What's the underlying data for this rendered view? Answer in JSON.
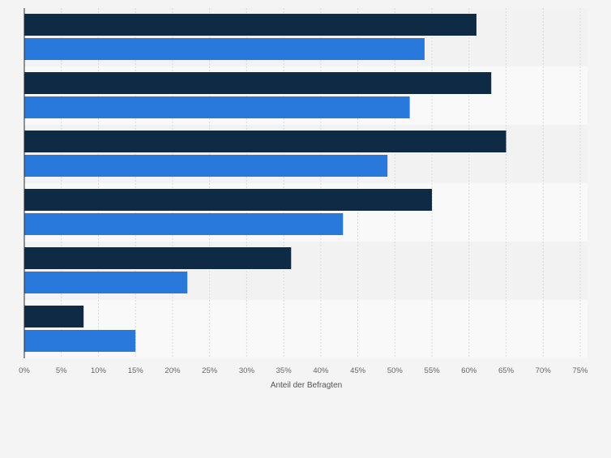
{
  "chart_data": {
    "type": "bar",
    "orientation": "horizontal",
    "categories": [
      "",
      "",
      "",
      "",
      "",
      ""
    ],
    "series": [
      {
        "values": [
          61,
          63,
          65,
          55,
          36,
          8
        ]
      },
      {
        "values": [
          54,
          52,
          49,
          43,
          22,
          15
        ]
      }
    ],
    "xlabel": "Anteil der Befragten",
    "ylabel": "",
    "xlim": [
      0,
      75
    ],
    "x_ticks": [
      "0%",
      "5%",
      "10%",
      "15%",
      "20%",
      "25%",
      "30%",
      "35%",
      "40%",
      "45%",
      "50%",
      "55%",
      "60%",
      "65%",
      "70%",
      "75%"
    ],
    "grid": true,
    "legend": "none",
    "colors": {
      "series_1": "#0f2a44",
      "series_2": "#2979dd",
      "band_a": "#f2f2f2",
      "band_b": "#f9f9f9",
      "gridline": "#d9d9d9",
      "axis": "#2b2b2b",
      "tick_text": "#666666"
    }
  }
}
